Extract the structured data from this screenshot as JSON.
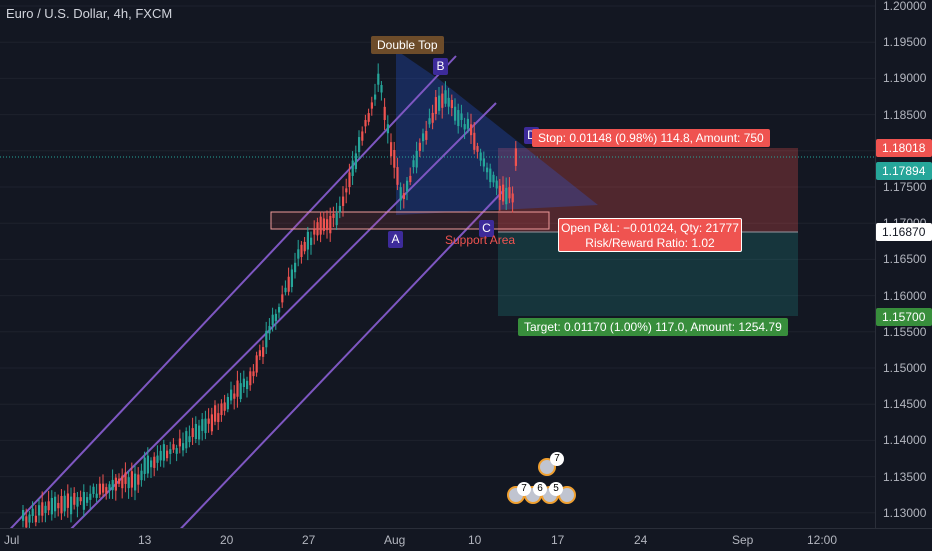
{
  "header": {
    "title": "Euro / U.S. Dollar, 4h, FXCM"
  },
  "price_axis": {
    "ticks": [
      "1.20000",
      "1.19500",
      "1.19000",
      "1.18500",
      "1.18000",
      "1.17500",
      "1.17000",
      "1.16500",
      "1.16000",
      "1.15500",
      "1.15000",
      "1.14500",
      "1.14000",
      "1.13500",
      "1.13000"
    ],
    "tags": {
      "stop": "1.18018",
      "current": "1.17894",
      "entry": "1.16870",
      "target": "1.15700"
    }
  },
  "time_axis": {
    "labels": [
      "Jul",
      "13",
      "20",
      "27",
      "Aug",
      "10",
      "17",
      "24",
      "Sep",
      "12:00"
    ]
  },
  "annotations": {
    "double_top": "Double Top",
    "support_area": "Support Area",
    "points": {
      "a": "A",
      "b": "B",
      "c": "C",
      "d": "D"
    }
  },
  "position": {
    "stop_label": "Stop: 0.01148 (0.98%) 114.8, Amount: 750",
    "pnl_line1": "Open P&L: −0.01024, Qty: 21777",
    "pnl_line2": "Risk/Reward Ratio: 1.02",
    "target_label": "Target: 0.01170 (1.00%) 117.0, Amount: 1254.79"
  },
  "events": {
    "top_badge": "7",
    "badges": [
      "7",
      "6",
      "5"
    ]
  },
  "colors": {
    "background": "#131722",
    "up_candle": "#26a69a",
    "down_candle": "#ef5350",
    "channel": "#7e57c2",
    "stop_zone": "#ef5350",
    "target_zone": "#1b5e20",
    "current_tag": "#26a69a"
  }
}
